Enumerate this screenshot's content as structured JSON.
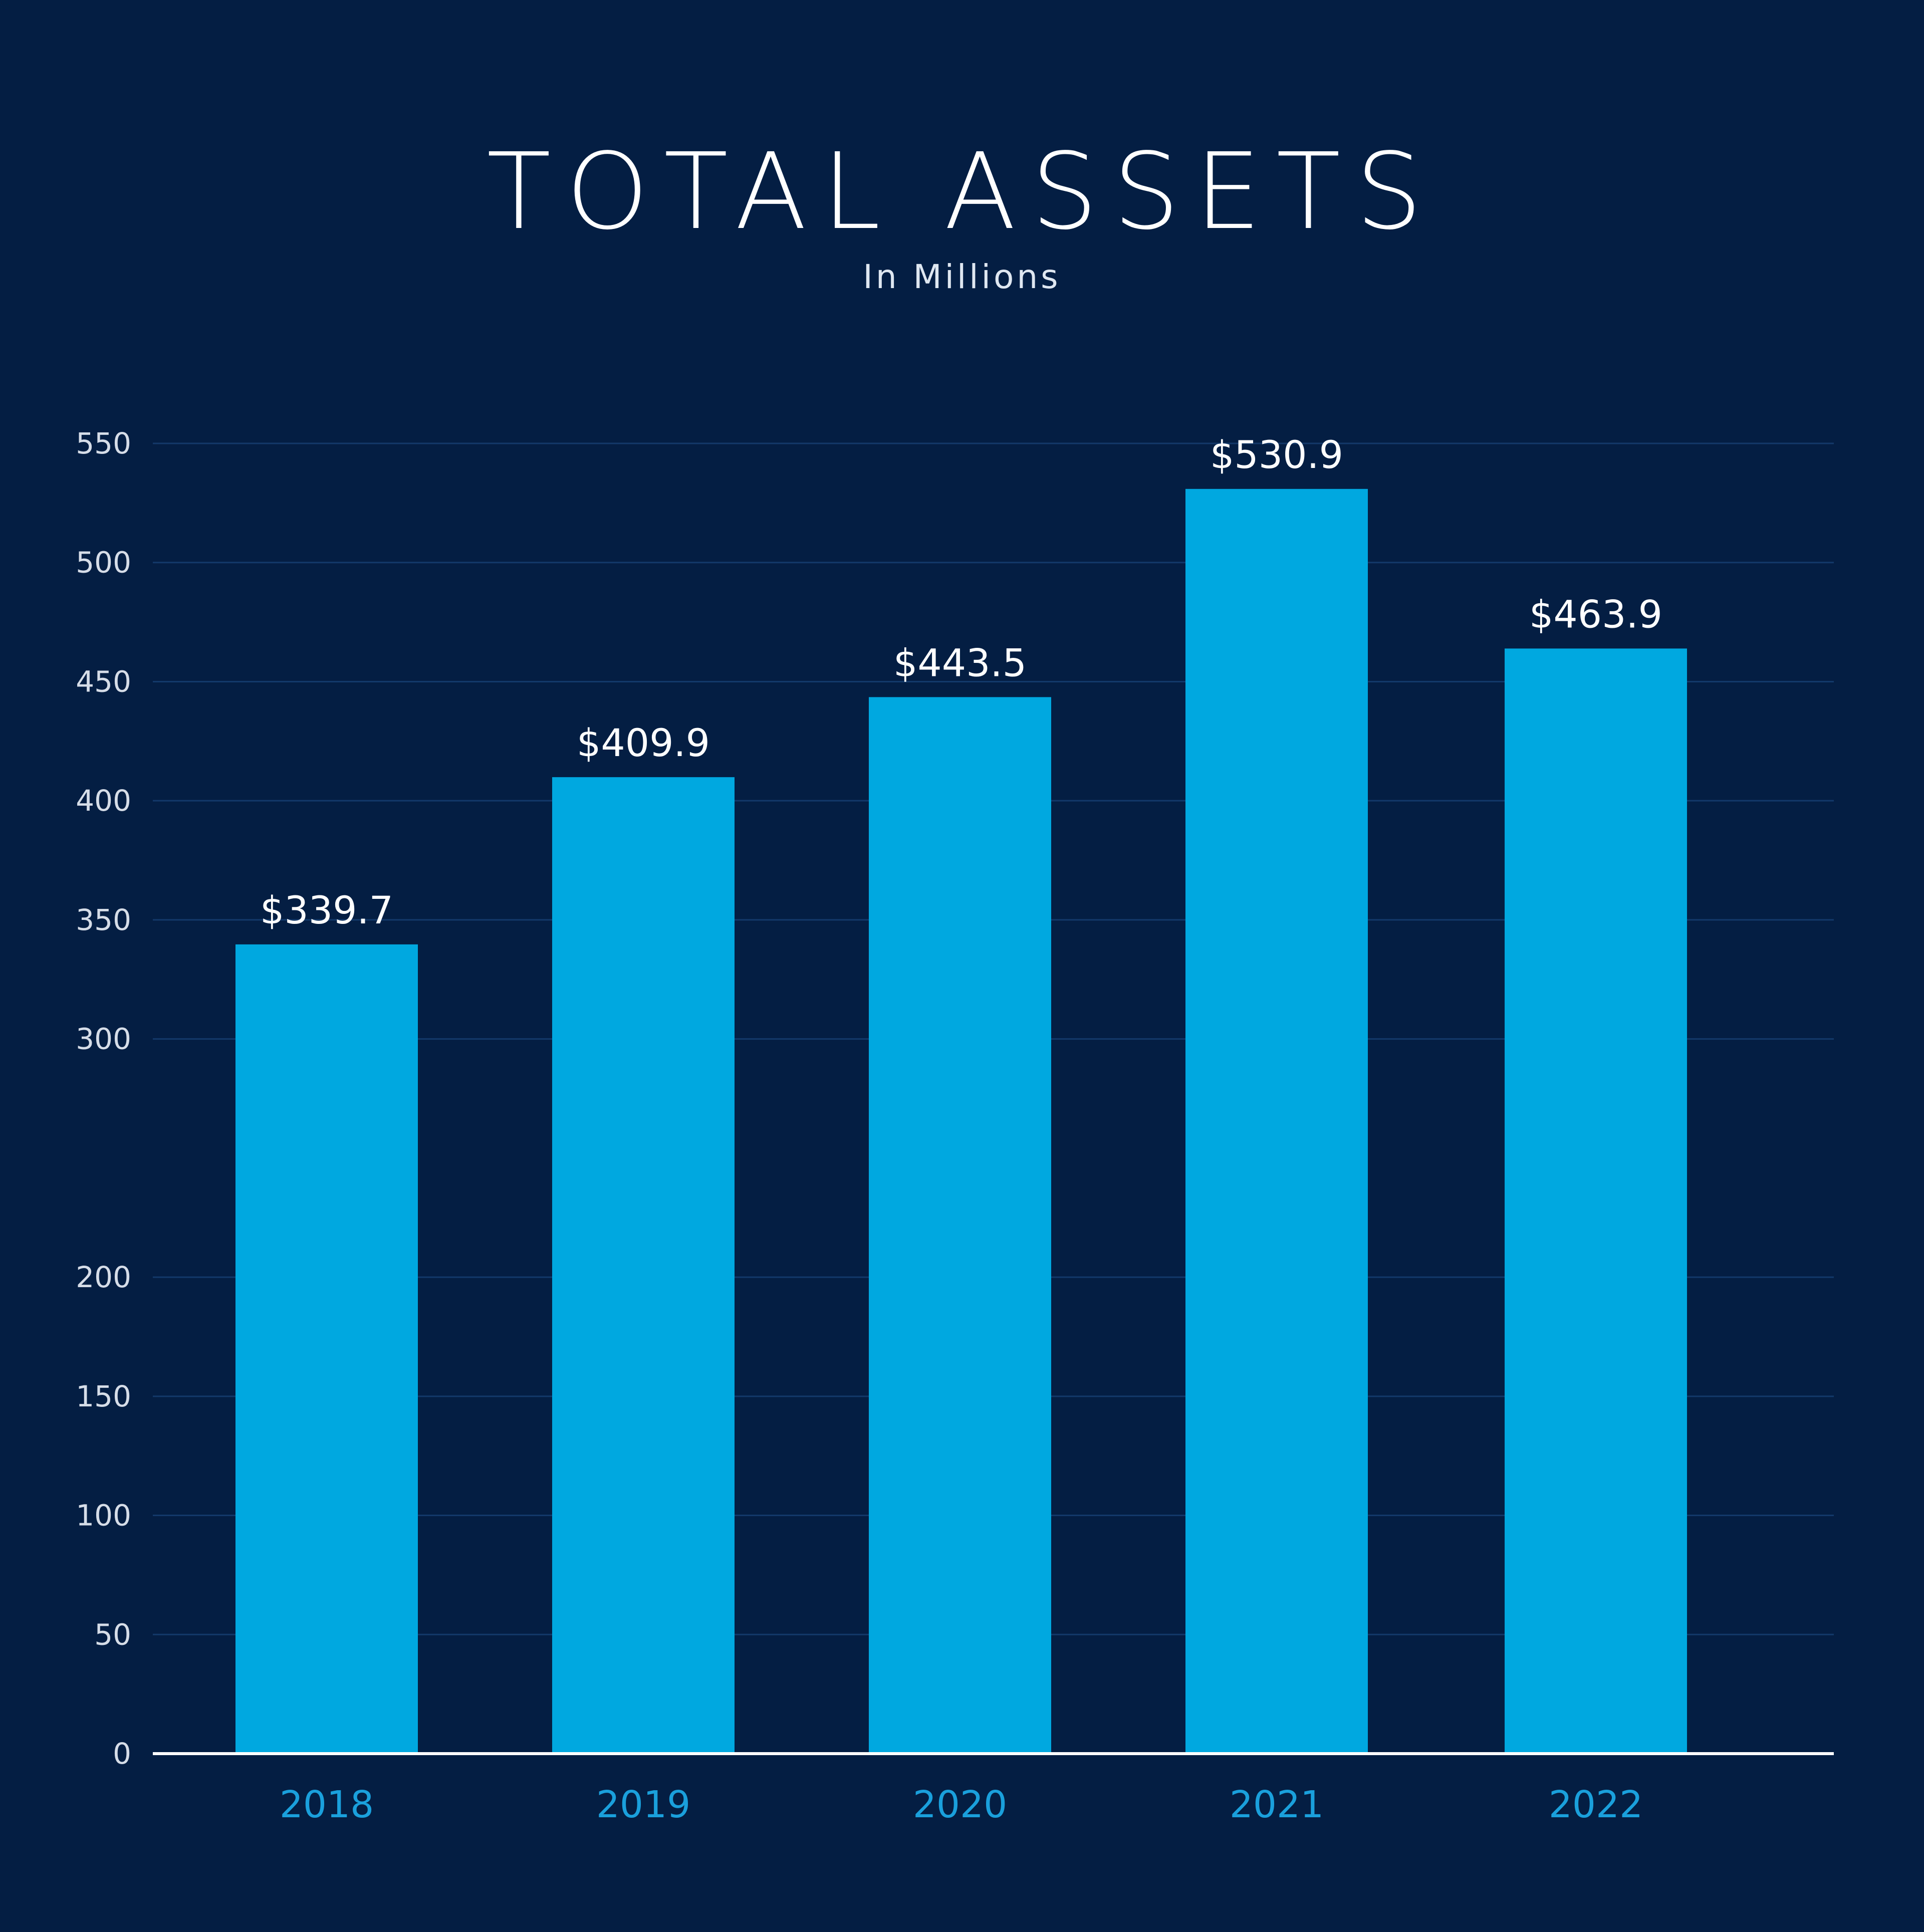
{
  "chart_data": {
    "type": "bar",
    "title": "TOTAL ASSETS",
    "subtitle": "In Millions",
    "categories": [
      "2018",
      "2019",
      "2020",
      "2021",
      "2022"
    ],
    "values": [
      339.7,
      409.9,
      443.5,
      530.9,
      463.9
    ],
    "data_labels": [
      "$339.7",
      "$409.9",
      "$443.5",
      "$530.9",
      "$463.9"
    ],
    "yticks": [
      0,
      50,
      100,
      150,
      200,
      300,
      350,
      400,
      450,
      500,
      550
    ],
    "ylim": [
      0,
      550
    ],
    "grid": true,
    "legend": "none"
  },
  "colors": {
    "background": "#041e43",
    "bar": "#00a8e0",
    "grid": "#13396a",
    "baseline": "#ffffff",
    "x_tick_text": "#1aa0dc",
    "title_text": "#ffffff"
  }
}
